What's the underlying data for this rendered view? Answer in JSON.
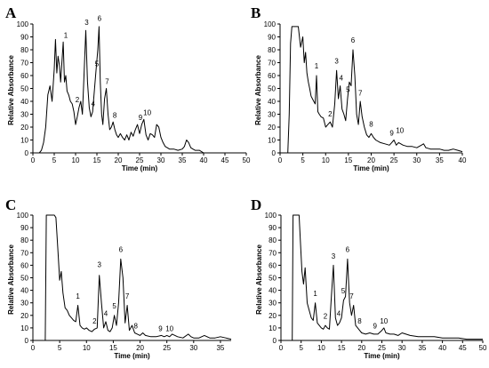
{
  "chart_data": [
    {
      "type": "line",
      "panel": "A",
      "xlabel": "Time (min)",
      "ylabel": "Relative Absorbance",
      "xlim": [
        0,
        50
      ],
      "ylim": [
        0,
        100
      ],
      "xticks": [
        0,
        5,
        10,
        15,
        20,
        25,
        30,
        35,
        40,
        45,
        50
      ],
      "yticks": [
        0,
        10,
        20,
        30,
        40,
        50,
        60,
        70,
        80,
        90,
        100
      ],
      "series": [
        {
          "x": [
            0,
            1.5,
            2.0,
            2.5,
            3.0,
            3.5,
            4.0,
            4.5,
            5.0,
            5.3,
            5.6,
            5.9,
            6.2,
            6.5,
            6.8,
            7.1,
            7.4,
            7.7,
            8.0,
            8.4,
            8.8,
            9.2,
            9.6,
            10.0,
            10.4,
            10.8,
            11.2,
            11.6,
            12.0,
            12.4,
            12.8,
            13.2,
            13.6,
            14.0,
            14.4,
            14.8,
            15.2,
            15.5,
            15.8,
            16.1,
            16.4,
            16.8,
            17.2,
            17.6,
            18.0,
            18.4,
            18.8,
            19.2,
            19.6,
            20.0,
            20.5,
            21.0,
            21.5,
            22.0,
            22.5,
            23.0,
            23.5,
            24.0,
            24.5,
            25.0,
            25.5,
            26.0,
            26.5,
            27.0,
            27.5,
            28.0,
            28.5,
            29.0,
            29.5,
            30.0,
            30.5,
            31.0,
            31.5,
            32.0,
            33.0,
            34.0,
            35.0,
            35.5,
            36.0,
            36.5,
            37.0,
            37.5,
            38.0,
            39.0,
            40.0
          ],
          "y": [
            0,
            0,
            2,
            8,
            20,
            45,
            52,
            40,
            65,
            88,
            62,
            75,
            68,
            55,
            70,
            86,
            55,
            60,
            48,
            45,
            40,
            38,
            32,
            22,
            28,
            35,
            40,
            30,
            62,
            95,
            55,
            35,
            28,
            32,
            48,
            64,
            80,
            98,
            55,
            30,
            22,
            42,
            50,
            30,
            18,
            20,
            24,
            18,
            14,
            12,
            15,
            12,
            10,
            14,
            10,
            16,
            13,
            18,
            22,
            15,
            22,
            26,
            14,
            10,
            15,
            14,
            12,
            22,
            20,
            12,
            8,
            5,
            4,
            3,
            3,
            2,
            3,
            5,
            10,
            8,
            4,
            3,
            2,
            2,
            0
          ]
        }
      ],
      "peak_labels": [
        {
          "label": "1",
          "x": 7.7,
          "y": 88
        },
        {
          "label": "2",
          "x": 10.4,
          "y": 38
        },
        {
          "label": "3",
          "x": 12.6,
          "y": 98
        },
        {
          "label": "4",
          "x": 14.1,
          "y": 35
        },
        {
          "label": "5",
          "x": 15.0,
          "y": 66
        },
        {
          "label": "6",
          "x": 15.6,
          "y": 101
        },
        {
          "label": "7",
          "x": 17.4,
          "y": 52
        },
        {
          "label": "8",
          "x": 19.2,
          "y": 26
        },
        {
          "label": "9",
          "x": 25.2,
          "y": 24
        },
        {
          "label": "10",
          "x": 26.8,
          "y": 28
        }
      ]
    },
    {
      "type": "line",
      "panel": "B",
      "xlabel": "Time (min)",
      "ylabel": "Relative Absorbance",
      "xlim": [
        0,
        40
      ],
      "ylim": [
        0,
        100
      ],
      "xticks": [
        0,
        5,
        10,
        15,
        20,
        25,
        30,
        35,
        40
      ],
      "yticks": [
        0,
        10,
        20,
        30,
        40,
        50,
        60,
        70,
        80,
        90,
        100
      ],
      "series": [
        {
          "x": [
            0,
            1.7,
            2.0,
            2.3,
            2.6,
            3.0,
            4.0,
            4.5,
            5.0,
            5.3,
            5.6,
            5.9,
            6.2,
            6.5,
            6.8,
            7.1,
            7.4,
            7.7,
            8.0,
            8.3,
            8.6,
            9.0,
            9.5,
            10.0,
            10.5,
            11.0,
            11.5,
            12.0,
            12.4,
            12.8,
            13.2,
            13.6,
            14.0,
            14.4,
            14.8,
            15.2,
            15.6,
            16.0,
            16.4,
            16.8,
            17.2,
            17.6,
            18.0,
            18.5,
            19.0,
            19.5,
            20.0,
            20.5,
            21.0,
            22.0,
            23.0,
            24.0,
            24.5,
            25.0,
            25.5,
            26.0,
            27.0,
            28.0,
            29.0,
            30.0,
            31.0,
            31.5,
            32.0,
            33.0,
            34.0,
            35.0,
            36.0,
            37.0,
            38.0,
            39.0,
            40.0
          ],
          "y": [
            0,
            0,
            30,
            85,
            98,
            98,
            98,
            82,
            90,
            70,
            78,
            62,
            55,
            50,
            44,
            42,
            40,
            38,
            60,
            32,
            30,
            28,
            27,
            20,
            22,
            24,
            20,
            38,
            64,
            42,
            52,
            34,
            30,
            25,
            42,
            55,
            52,
            80,
            60,
            30,
            22,
            40,
            28,
            20,
            14,
            12,
            15,
            12,
            10,
            8,
            7,
            6,
            8,
            10,
            6,
            8,
            6,
            5,
            5,
            4,
            6,
            7,
            4,
            3,
            3,
            3,
            2,
            2,
            3,
            2,
            1
          ]
        }
      ],
      "peak_labels": [
        {
          "label": "1",
          "x": 8.0,
          "y": 64
        },
        {
          "label": "2",
          "x": 11.0,
          "y": 27
        },
        {
          "label": "3",
          "x": 12.4,
          "y": 68
        },
        {
          "label": "4",
          "x": 13.4,
          "y": 55
        },
        {
          "label": "5",
          "x": 14.9,
          "y": 46
        },
        {
          "label": "6",
          "x": 16.0,
          "y": 84
        },
        {
          "label": "7",
          "x": 17.6,
          "y": 43
        },
        {
          "label": "8",
          "x": 20.0,
          "y": 19
        },
        {
          "label": "9",
          "x": 24.5,
          "y": 12
        },
        {
          "label": "10",
          "x": 26.3,
          "y": 14
        }
      ]
    },
    {
      "type": "line",
      "panel": "C",
      "xlabel": "Time (min)",
      "ylabel": "Relative Absorbance",
      "xlim": [
        0,
        37
      ],
      "ylim": [
        0,
        100
      ],
      "xticks": [
        0,
        5,
        10,
        15,
        20,
        25,
        30,
        35
      ],
      "yticks": [
        0,
        10,
        20,
        30,
        40,
        50,
        60,
        70,
        80,
        90,
        100
      ],
      "series": [
        {
          "x": [
            0,
            2.3,
            2.5,
            3.0,
            4.0,
            4.3,
            4.7,
            5.0,
            5.3,
            5.6,
            6.0,
            6.4,
            6.8,
            7.2,
            7.6,
            8.0,
            8.4,
            8.8,
            9.2,
            9.6,
            10.0,
            10.5,
            11.0,
            11.5,
            12.0,
            12.4,
            12.8,
            13.2,
            13.6,
            14.0,
            14.4,
            14.8,
            15.2,
            15.6,
            16.0,
            16.4,
            16.8,
            17.2,
            17.6,
            18.0,
            18.5,
            19.0,
            19.5,
            20.0,
            20.5,
            21.0,
            22.0,
            23.0,
            24.0,
            24.5,
            25.0,
            25.5,
            26.0,
            27.0,
            28.0,
            29.0,
            29.5,
            30.0,
            31.0,
            32.0,
            33.0,
            34.0,
            35.0,
            36.0,
            37.0
          ],
          "y": [
            0,
            0,
            100,
            100,
            100,
            98,
            70,
            48,
            55,
            38,
            26,
            24,
            20,
            18,
            16,
            15,
            28,
            12,
            10,
            9,
            10,
            8,
            7,
            9,
            10,
            52,
            30,
            10,
            15,
            8,
            7,
            10,
            20,
            12,
            30,
            65,
            50,
            14,
            28,
            8,
            12,
            6,
            5,
            4,
            6,
            4,
            3,
            3,
            4,
            3,
            4,
            3,
            5,
            3,
            2,
            5,
            3,
            2,
            2,
            4,
            2,
            2,
            3,
            2,
            1
          ]
        }
      ],
      "peak_labels": [
        {
          "label": "1",
          "x": 8.4,
          "y": 32
        },
        {
          "label": "2",
          "x": 11.5,
          "y": 12
        },
        {
          "label": "3",
          "x": 12.4,
          "y": 57
        },
        {
          "label": "4",
          "x": 13.6,
          "y": 18
        },
        {
          "label": "5",
          "x": 15.2,
          "y": 24
        },
        {
          "label": "6",
          "x": 16.4,
          "y": 69
        },
        {
          "label": "7",
          "x": 17.6,
          "y": 32
        },
        {
          "label": "8",
          "x": 19.2,
          "y": 8
        },
        {
          "label": "9",
          "x": 23.8,
          "y": 6
        },
        {
          "label": "10",
          "x": 25.5,
          "y": 6
        }
      ]
    },
    {
      "type": "line",
      "panel": "D",
      "xlabel": "Time (min)",
      "ylabel": "Relative Absorbance",
      "xlim": [
        0,
        50
      ],
      "ylim": [
        0,
        100
      ],
      "xticks": [
        0,
        5,
        10,
        15,
        20,
        25,
        30,
        35,
        40,
        45,
        50
      ],
      "yticks": [
        0,
        10,
        20,
        30,
        40,
        50,
        60,
        70,
        80,
        90,
        100
      ],
      "series": [
        {
          "x": [
            0,
            2.8,
            3.0,
            3.5,
            4.5,
            4.8,
            5.2,
            5.6,
            6.0,
            6.5,
            7.0,
            7.5,
            8.0,
            8.5,
            9.0,
            9.5,
            10.0,
            10.5,
            11.0,
            11.5,
            12.0,
            12.5,
            13.0,
            13.5,
            14.0,
            14.5,
            15.0,
            15.5,
            16.0,
            16.5,
            17.0,
            17.5,
            18.0,
            18.5,
            19.0,
            19.5,
            20.0,
            21.0,
            22.0,
            23.0,
            24.0,
            25.0,
            25.5,
            26.0,
            27.0,
            28.0,
            29.0,
            30.0,
            32.0,
            34.0,
            36.0,
            38.0,
            40.0,
            42.0,
            44.0,
            46.0,
            48.0,
            50.0
          ],
          "y": [
            0,
            0,
            100,
            100,
            100,
            80,
            55,
            45,
            58,
            30,
            24,
            18,
            16,
            30,
            14,
            12,
            10,
            9,
            12,
            10,
            9,
            36,
            60,
            18,
            12,
            14,
            18,
            32,
            35,
            65,
            30,
            20,
            28,
            12,
            10,
            8,
            6,
            5,
            6,
            5,
            5,
            8,
            10,
            6,
            5,
            5,
            4,
            6,
            4,
            3,
            3,
            3,
            2,
            2,
            2,
            1,
            1,
            1
          ]
        }
      ],
      "peak_labels": [
        {
          "label": "1",
          "x": 8.5,
          "y": 34
        },
        {
          "label": "2",
          "x": 11.0,
          "y": 16
        },
        {
          "label": "3",
          "x": 13.0,
          "y": 64
        },
        {
          "label": "4",
          "x": 14.3,
          "y": 18
        },
        {
          "label": "5",
          "x": 15.4,
          "y": 36
        },
        {
          "label": "6",
          "x": 16.5,
          "y": 69
        },
        {
          "label": "7",
          "x": 17.5,
          "y": 32
        },
        {
          "label": "8",
          "x": 19.5,
          "y": 12
        },
        {
          "label": "9",
          "x": 23.3,
          "y": 8
        },
        {
          "label": "10",
          "x": 25.5,
          "y": 12
        }
      ]
    }
  ]
}
